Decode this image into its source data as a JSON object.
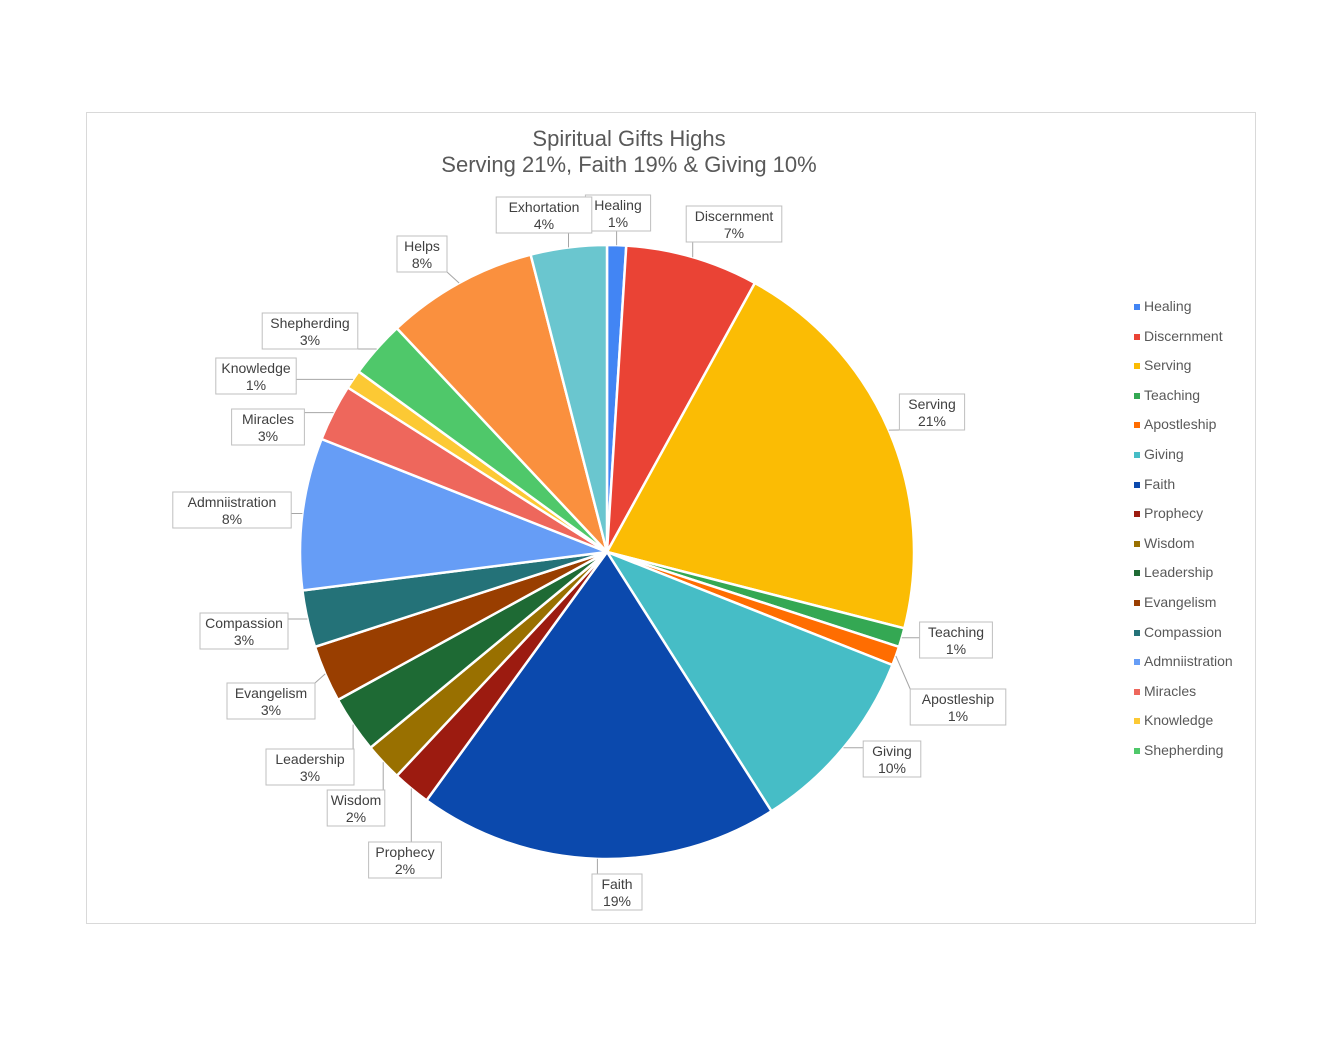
{
  "chart_data": {
    "type": "pie",
    "title": "Spiritual Gifts Highs",
    "subtitle": "Serving 21%, Faith 19% & Giving 10%",
    "legend_position": "right",
    "slices": [
      {
        "name": "Healing",
        "value": 1,
        "label": "1%",
        "color": "#4285f4"
      },
      {
        "name": "Discernment",
        "value": 7,
        "label": "7%",
        "color": "#ea4335"
      },
      {
        "name": "Serving",
        "value": 21,
        "label": "21%",
        "color": "#fbbc04"
      },
      {
        "name": "Teaching",
        "value": 1,
        "label": "1%",
        "color": "#34a853"
      },
      {
        "name": "Apostleship",
        "value": 1,
        "label": "1%",
        "color": "#ff6d01"
      },
      {
        "name": "Giving",
        "value": 10,
        "label": "10%",
        "color": "#46bdc6"
      },
      {
        "name": "Faith",
        "value": 19,
        "label": "19%",
        "color": "#0b49ad"
      },
      {
        "name": "Prophecy",
        "value": 2,
        "label": "2%",
        "color": "#9c1b10"
      },
      {
        "name": "Wisdom",
        "value": 2,
        "label": "2%",
        "color": "#997000"
      },
      {
        "name": "Leadership",
        "value": 3,
        "label": "3%",
        "color": "#1e6a34"
      },
      {
        "name": "Evangelism",
        "value": 3,
        "label": "3%",
        "color": "#993e00"
      },
      {
        "name": "Compassion",
        "value": 3,
        "label": "3%",
        "color": "#247278"
      },
      {
        "name": "Admniistration",
        "value": 8,
        "label": "8%",
        "color": "#669df6"
      },
      {
        "name": "Miracles",
        "value": 3,
        "label": "3%",
        "color": "#ee675c"
      },
      {
        "name": "Knowledge",
        "value": 1,
        "label": "1%",
        "color": "#fcc934"
      },
      {
        "name": "Shepherding",
        "value": 3,
        "label": "3%",
        "color": "#4fc86a"
      },
      {
        "name": "Helps",
        "value": 8,
        "label": "8%",
        "color": "#fa903e"
      },
      {
        "name": "Exhortation",
        "value": 4,
        "label": "4%",
        "color": "#6ac6cf"
      }
    ],
    "legend": [
      "Healing",
      "Discernment",
      "Serving",
      "Teaching",
      "Apostleship",
      "Giving",
      "Faith",
      "Prophecy",
      "Wisdom",
      "Leadership",
      "Evangelism",
      "Compassion",
      "Admniistratio\nn",
      "Miracles",
      "Knowledge",
      "Shepherding"
    ]
  }
}
